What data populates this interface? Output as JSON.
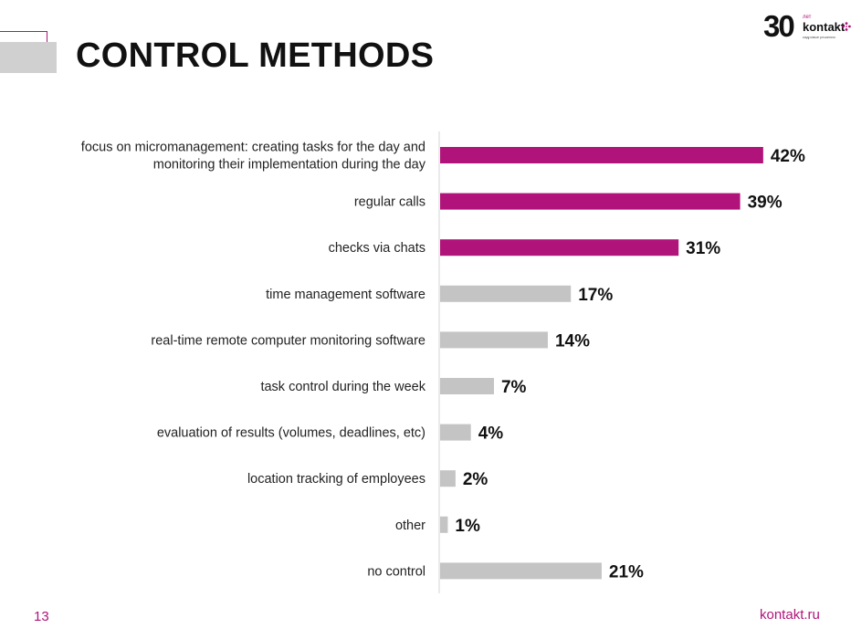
{
  "header": {
    "title": "CONTROL METHODS"
  },
  "logo": {
    "number": "30",
    "word": "kontakt",
    "small_top": "лет",
    "small_bottom": "кадровые решения"
  },
  "footer": {
    "page_number": "13",
    "site": "kontakt.ru"
  },
  "colors": {
    "highlight": "#b0147a",
    "neutral": "#c4c4c4",
    "accent": "#b0147a"
  },
  "icons": {
    "logo_dots": "flower-dots-icon"
  },
  "chart_data": {
    "type": "bar",
    "orientation": "horizontal",
    "title": "",
    "xlabel": "",
    "ylabel": "",
    "xlim": [
      0,
      50
    ],
    "grid": false,
    "legend": "none",
    "value_suffix": "%",
    "categories": [
      [
        "focus on micromanagement: creating tasks for the day and",
        "monitoring their implementation during the day"
      ],
      [
        "regular calls"
      ],
      [
        "checks via chats"
      ],
      [
        "time management software"
      ],
      [
        "real-time remote computer monitoring software"
      ],
      [
        "task control during the week"
      ],
      [
        "evaluation of results (volumes, deadlines, etc)"
      ],
      [
        "location tracking of employees"
      ],
      [
        "other"
      ],
      [
        "no control"
      ]
    ],
    "values": [
      42,
      39,
      31,
      17,
      14,
      7,
      4,
      2,
      1,
      21
    ],
    "highlight": [
      true,
      true,
      true,
      false,
      false,
      false,
      false,
      false,
      false,
      false
    ]
  }
}
